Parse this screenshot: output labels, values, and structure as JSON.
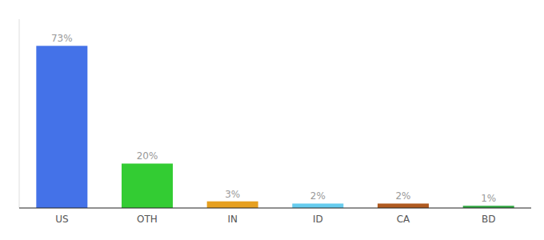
{
  "chart_data": {
    "type": "bar",
    "categories": [
      "US",
      "OTH",
      "IN",
      "ID",
      "CA",
      "BD"
    ],
    "values": [
      73,
      20,
      3,
      2,
      2,
      1
    ],
    "value_labels": [
      "73%",
      "20%",
      "3%",
      "2%",
      "2%",
      "1%"
    ],
    "colors": [
      "#4472e8",
      "#33cc33",
      "#e6a020",
      "#66ccee",
      "#b05a20",
      "#33aa44"
    ],
    "ylim": [
      0,
      85
    ],
    "yticks": [],
    "grid": false,
    "data_labels": true,
    "tick_labels": "x"
  }
}
